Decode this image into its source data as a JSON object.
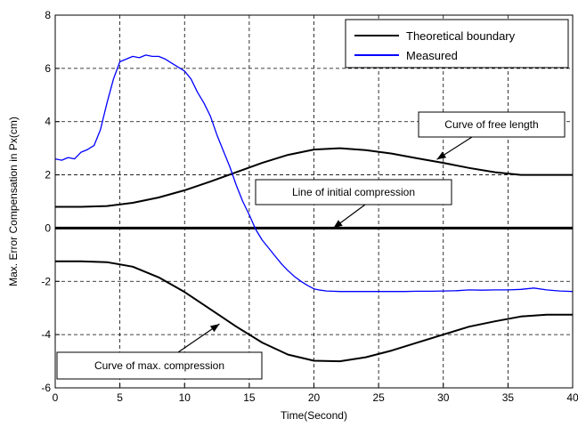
{
  "chart_data": {
    "type": "line",
    "xlabel": "Time(Second)",
    "ylabel": "Max. Error Compensation in Px(cm)",
    "xlim": [
      0,
      40
    ],
    "ylim": [
      -6,
      8
    ],
    "xticks": [
      0,
      5,
      10,
      15,
      20,
      25,
      30,
      35,
      40
    ],
    "yticks": [
      -6,
      -4,
      -2,
      0,
      2,
      4,
      6,
      8
    ],
    "grid": true,
    "grid_style": "dashed",
    "legend_position": "top-right",
    "series": [
      {
        "name": "Theoretical boundary",
        "color": "#000000",
        "role": "upper-boundary",
        "x": [
          0,
          2,
          4,
          6,
          8,
          10,
          12,
          14,
          16,
          18,
          20,
          22,
          24,
          26,
          28,
          30,
          32,
          34,
          36,
          38,
          40
        ],
        "y": [
          0.8,
          0.8,
          0.83,
          0.95,
          1.15,
          1.42,
          1.75,
          2.1,
          2.45,
          2.75,
          2.95,
          3.0,
          2.93,
          2.8,
          2.62,
          2.45,
          2.26,
          2.1,
          2.0,
          2.0,
          2.0
        ]
      },
      {
        "name": "Theoretical boundary",
        "color": "#000000",
        "role": "initial-compression",
        "x": [
          0,
          40
        ],
        "y": [
          0,
          0
        ]
      },
      {
        "name": "Theoretical boundary",
        "color": "#000000",
        "role": "lower-boundary",
        "x": [
          0,
          2,
          4,
          6,
          8,
          10,
          12,
          14,
          16,
          18,
          20,
          22,
          24,
          26,
          28,
          30,
          32,
          34,
          36,
          38,
          40
        ],
        "y": [
          -1.25,
          -1.25,
          -1.28,
          -1.45,
          -1.85,
          -2.4,
          -3.05,
          -3.7,
          -4.3,
          -4.75,
          -4.98,
          -5.0,
          -4.85,
          -4.6,
          -4.3,
          -4.0,
          -3.7,
          -3.5,
          -3.32,
          -3.25,
          -3.25
        ]
      },
      {
        "name": "Measured",
        "color": "#0000ff",
        "x": [
          0,
          0.5,
          1,
          1.5,
          2,
          2.5,
          3,
          3.5,
          4,
          4.5,
          5,
          5.5,
          6,
          6.5,
          7,
          7.5,
          8,
          8.5,
          9,
          9.5,
          10,
          10.5,
          11,
          11.5,
          12,
          12.5,
          13,
          13.5,
          14,
          14.5,
          15,
          15.5,
          16,
          16.5,
          17,
          17.5,
          18,
          18.5,
          19,
          19.5,
          20,
          20.5,
          21,
          22,
          23,
          24,
          25,
          26,
          27,
          28,
          29,
          30,
          31,
          32,
          33,
          34,
          35,
          36,
          37,
          38,
          39,
          40
        ],
        "y": [
          2.6,
          2.55,
          2.65,
          2.6,
          2.85,
          2.95,
          3.1,
          3.7,
          4.7,
          5.6,
          6.25,
          6.35,
          6.45,
          6.4,
          6.5,
          6.45,
          6.45,
          6.35,
          6.2,
          6.05,
          5.9,
          5.6,
          5.1,
          4.7,
          4.2,
          3.5,
          2.9,
          2.3,
          1.6,
          1.0,
          0.5,
          -0.05,
          -0.45,
          -0.75,
          -1.05,
          -1.35,
          -1.6,
          -1.82,
          -2.0,
          -2.15,
          -2.28,
          -2.33,
          -2.36,
          -2.38,
          -2.38,
          -2.38,
          -2.38,
          -2.38,
          -2.38,
          -2.37,
          -2.37,
          -2.36,
          -2.35,
          -2.32,
          -2.33,
          -2.32,
          -2.32,
          -2.3,
          -2.25,
          -2.32,
          -2.36,
          -2.38
        ]
      }
    ],
    "legend": [
      {
        "label": "Theoretical boundary",
        "color": "#000000"
      },
      {
        "label": "Measured",
        "color": "#0000ff"
      }
    ],
    "annotations": [
      {
        "text": "Curve of free length",
        "arrow_to": [
          29.5,
          2.58
        ]
      },
      {
        "text": "Line of initial compression",
        "arrow_to": [
          21.5,
          0
        ]
      },
      {
        "text": "Curve of max. compression",
        "arrow_to": [
          12.7,
          -3.6
        ]
      }
    ]
  }
}
